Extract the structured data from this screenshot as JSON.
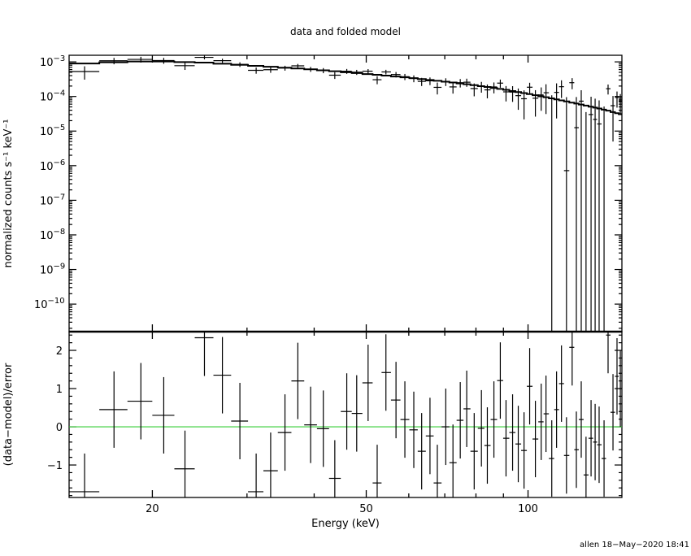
{
  "chart_data": {
    "type": "scatter",
    "title": "data and folded model",
    "xlabel": "Energy (keV)",
    "xscale": "log",
    "xlim": [
      14.0,
      149.5
    ],
    "x_tick_labels": [
      {
        "value": 20,
        "label": "20"
      },
      {
        "value": 50,
        "label": "50"
      },
      {
        "value": 100,
        "label": "100"
      }
    ],
    "footer": "allen 18−May−2020 18:41",
    "panels": [
      {
        "name": "spectrum",
        "ylabel": "normalized counts s⁻¹ keV⁻¹",
        "yscale": "log",
        "ylim": [
          1.6e-11,
          0.00155
        ],
        "y_tick_labels": [
          {
            "value": 0.001,
            "base": "10",
            "exp": "−3"
          },
          {
            "value": 0.0001,
            "base": "10",
            "exp": "−4"
          },
          {
            "value": 1e-05,
            "base": "10",
            "exp": "−5"
          },
          {
            "value": 1e-06,
            "base": "10",
            "exp": "−6"
          },
          {
            "value": 1e-07,
            "base": "10",
            "exp": "−7"
          },
          {
            "value": 1e-08,
            "base": "10",
            "exp": "−8"
          },
          {
            "value": 1e-09,
            "base": "10",
            "exp": "−9"
          },
          {
            "value": 1e-10,
            "base": "10",
            "exp": "−10"
          }
        ],
        "model_curve": [
          [
            14,
            0.00085
          ],
          [
            16,
            0.00095
          ],
          [
            20,
            0.00105
          ],
          [
            25,
            0.00095
          ],
          [
            30,
            0.0008
          ],
          [
            40,
            0.0006
          ],
          [
            50,
            0.00045
          ],
          [
            60,
            0.00035
          ],
          [
            70,
            0.00027
          ],
          [
            80,
            0.00021
          ],
          [
            90,
            0.00016
          ],
          [
            100,
            0.00012
          ],
          [
            110,
            9e-05
          ],
          [
            120,
            6.8e-05
          ],
          [
            130,
            5.2e-05
          ],
          [
            140,
            4e-05
          ],
          [
            149.5,
            3e-05
          ]
        ],
        "relative_error_curve": [
          [
            14,
            0.25
          ],
          [
            30,
            0.15
          ],
          [
            50,
            0.18
          ],
          [
            70,
            0.25
          ],
          [
            90,
            0.4
          ],
          [
            105,
            0.6
          ],
          [
            110,
            1.3
          ],
          [
            149.5,
            1.4
          ]
        ]
      },
      {
        "name": "residuals",
        "ylabel": "(data−model)/error",
        "yscale": "linear",
        "ylim": [
          -1.85,
          2.49
        ],
        "zero_line_color": "#33cc33",
        "y_tick_labels": [
          {
            "value": 2,
            "label": "2"
          },
          {
            "value": 1,
            "label": "1"
          },
          {
            "value": 0,
            "label": "0"
          },
          {
            "value": -1,
            "label": "−1"
          }
        ]
      }
    ],
    "bins_energy_keV": [
      14.96,
      16.97,
      19.04,
      21.0,
      23.0,
      25.0,
      27.0,
      29.1,
      31.2,
      33.2,
      35.3,
      37.3,
      39.4,
      41.6,
      43.7,
      46.0,
      48.0,
      50.4,
      52.4,
      54.4,
      56.8,
      59.0,
      61.3,
      63.4,
      65.7,
      67.8,
      70.3,
      72.5,
      74.8,
      76.9,
      79.4,
      81.9,
      84.0,
      86.4,
      88.8,
      91.0,
      93.6,
      95.9,
      98.3,
      100.7,
      103.2,
      105.8,
      108.0,
      110.7,
      113.0,
      115.4,
      117.9,
      120.8,
      123.0,
      125.6,
      128.2,
      131.0,
      133.3,
      135.6,
      138.5,
      140.9,
      143.9,
      146.4,
      148.5
    ],
    "residuals": [
      -1.7,
      0.45,
      0.67,
      0.3,
      -1.1,
      2.33,
      1.35,
      0.15,
      -1.7,
      -1.15,
      -0.15,
      1.2,
      0.05,
      -0.05,
      -1.35,
      0.4,
      0.35,
      1.15,
      -1.47,
      1.42,
      0.7,
      0.19,
      -0.08,
      -0.64,
      -0.24,
      -1.47,
      0.0,
      -0.94,
      0.17,
      0.47,
      -0.64,
      -0.04,
      -0.49,
      0.19,
      1.21,
      -0.3,
      -0.15,
      -0.45,
      -0.62,
      1.06,
      -0.32,
      0.13,
      0.34,
      -0.83,
      0.45,
      1.13,
      -0.75,
      2.08,
      -0.6,
      0.19,
      -1.26,
      -0.3,
      -0.4,
      -0.47,
      -0.83,
      2.4,
      0.38,
      1.32,
      1.0
    ]
  }
}
